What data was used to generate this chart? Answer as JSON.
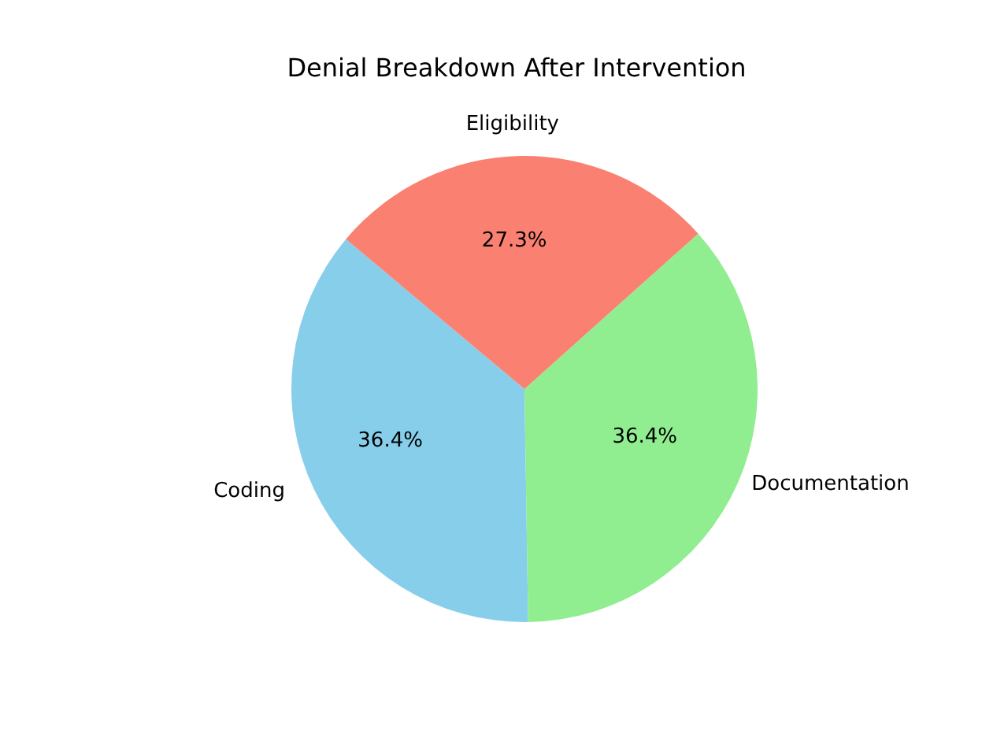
{
  "chart_data": {
    "type": "pie",
    "title": "Denial Breakdown After Intervention",
    "categories": [
      "Coding",
      "Documentation",
      "Eligibility"
    ],
    "values": [
      36.4,
      36.4,
      27.3
    ],
    "value_labels": [
      "36.4%",
      "36.4%",
      "27.3%"
    ],
    "colors": [
      "#87ceeb",
      "#90ee90",
      "#fa8072"
    ]
  }
}
